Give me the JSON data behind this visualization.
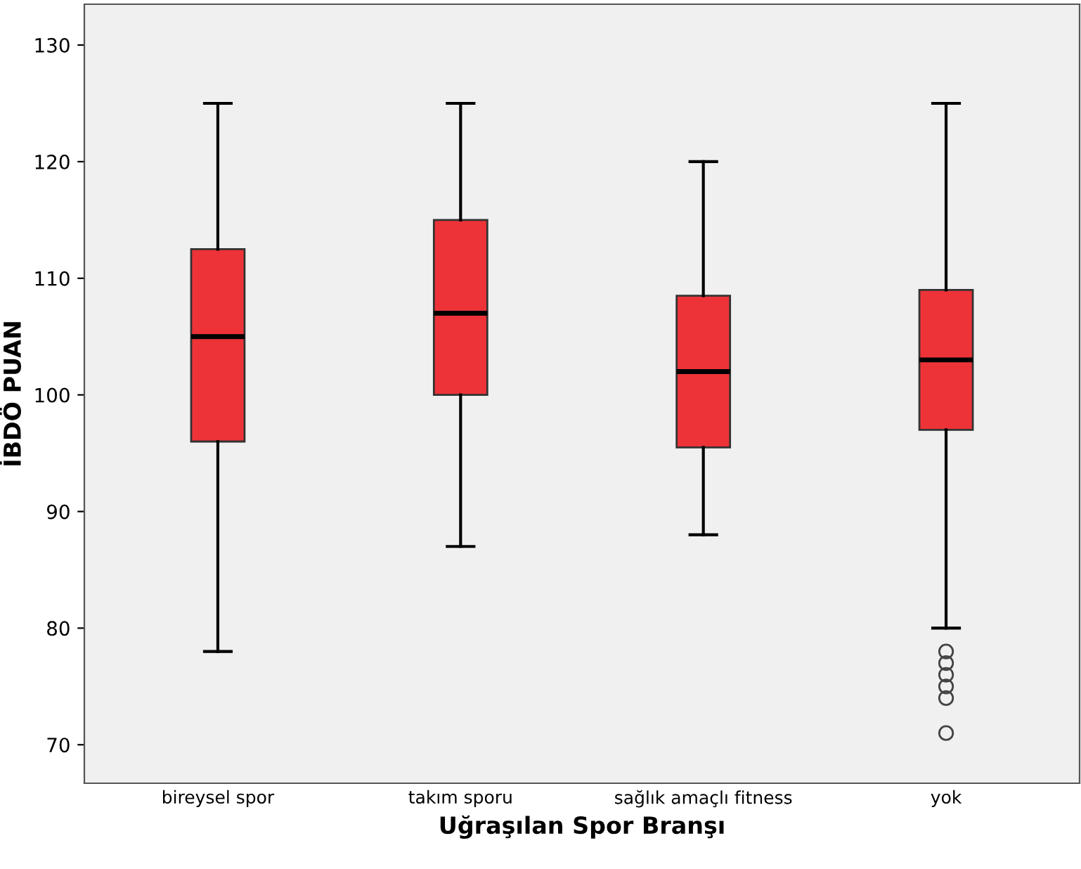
{
  "chart_data": {
    "type": "box",
    "xlabel": "Uğraşılan Spor Branşı",
    "ylabel": "İBDÖ PUAN",
    "categories": [
      "bireysel spor",
      "takım sporu",
      "sağlık amaçlı fitness",
      "yok"
    ],
    "boxes": [
      {
        "low": 78,
        "q1": 96,
        "median": 105,
        "q3": 112.5,
        "high": 125
      },
      {
        "low": 87,
        "q1": 100,
        "median": 107,
        "q3": 115,
        "high": 125
      },
      {
        "low": 88,
        "q1": 95.5,
        "median": 102,
        "q3": 108.5,
        "high": 120
      },
      {
        "low": 80,
        "q1": 97,
        "median": 103,
        "q3": 109,
        "high": 125,
        "outliers": [
          78,
          77,
          76,
          75,
          74,
          71
        ]
      }
    ],
    "color": "#ee3338",
    "ylim": [
      66.7,
      133.5
    ],
    "yticks": [
      70,
      80,
      90,
      100,
      110,
      120,
      130
    ],
    "grid": false
  }
}
